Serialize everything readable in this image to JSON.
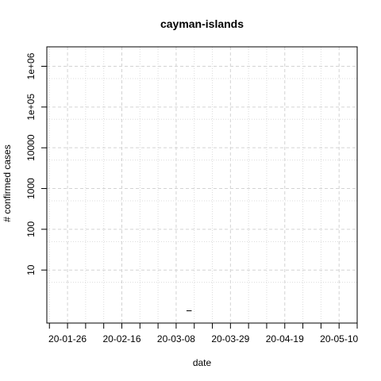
{
  "chart_data": {
    "type": "line",
    "title": "cayman-islands",
    "xlabel": "date",
    "ylabel": "# confirmed cases",
    "x_ticks": [
      "20-01-26",
      "20-02-16",
      "20-03-08",
      "20-03-29",
      "20-04-19",
      "20-05-10"
    ],
    "y_scale": "log",
    "y_ticks": [
      {
        "value": 10,
        "label": "10"
      },
      {
        "value": 100,
        "label": "100"
      },
      {
        "value": 1000,
        "label": "1000"
      },
      {
        "value": 10000,
        "label": "10000"
      },
      {
        "value": 100000,
        "label": "1e+05"
      },
      {
        "value": 1000000,
        "label": "1e+06"
      }
    ],
    "xlim": [
      "2020-01-18",
      "2020-05-17"
    ],
    "ylim": [
      0.5,
      3000000
    ],
    "grid": true,
    "series": [
      {
        "x": [
          "2020-03-12",
          "2020-03-13",
          "2020-03-14"
        ],
        "values": [
          1,
          1,
          1
        ],
        "color": "#000000"
      }
    ]
  }
}
